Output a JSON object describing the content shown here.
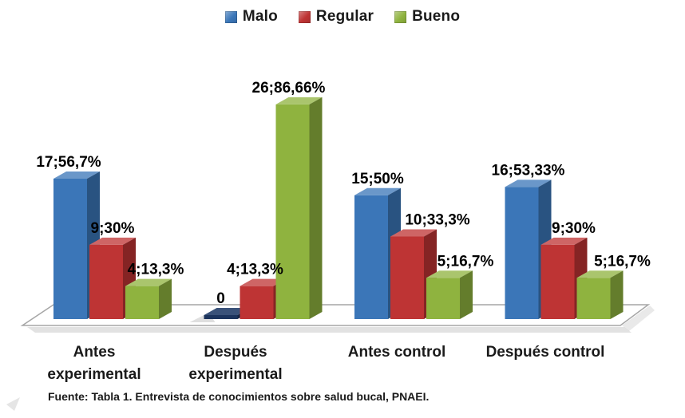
{
  "chart_data": {
    "type": "bar",
    "style": "3d-clustered-column",
    "title": "",
    "categories": [
      "Antes\nexperimental",
      "Después\nexperimental",
      "Antes control",
      "Después control"
    ],
    "series": [
      {
        "name": "Malo",
        "color": "#3B76B8",
        "values": [
          17,
          0,
          15,
          16
        ],
        "labels": [
          "17;56,7%",
          "0",
          "15;50%",
          "16;53,33%"
        ]
      },
      {
        "name": "Regular",
        "color": "#BE3434",
        "values": [
          9,
          4,
          10,
          9
        ],
        "labels": [
          "9;30%",
          "4;13,3%",
          "10;33,3%",
          "9;30%"
        ]
      },
      {
        "name": "Bueno",
        "color": "#8FB33F",
        "values": [
          4,
          26,
          5,
          5
        ],
        "labels": [
          "4;13,3%",
          "26;86,66%",
          "5;16,7%",
          "5;16,7%"
        ]
      }
    ],
    "value_label_format": "count;percent",
    "legend_position": "top",
    "gridlines": false,
    "value_axis_visible": false
  },
  "colors": {
    "zero_bar": "#1F3A67",
    "floor_fill": "#FFFFFF",
    "floor_stroke": "#A6A6A6",
    "shadow": "#BFBFBF",
    "text": "#000000"
  },
  "source_note": "Fuente: Tabla 1. Entrevista de conocimientos sobre salud bucal, PNAEI."
}
